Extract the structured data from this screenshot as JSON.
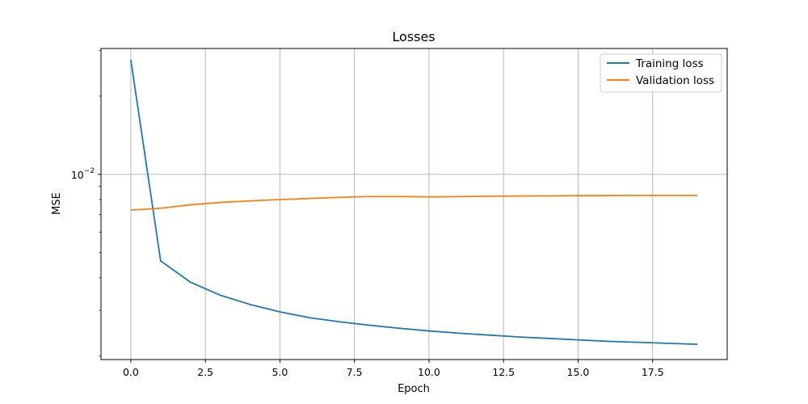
{
  "chart_data": {
    "type": "line",
    "title": "Losses",
    "xlabel": "Epoch",
    "ylabel": "MSE",
    "yscale": "log",
    "xlim": [
      -1.0,
      20.0
    ],
    "ylim": [
      0.00194,
      0.0305
    ],
    "grid": true,
    "legend_position": "top-right",
    "xticks": [
      {
        "value": 0.0,
        "label": "0.0"
      },
      {
        "value": 2.5,
        "label": "2.5"
      },
      {
        "value": 5.0,
        "label": "5.0"
      },
      {
        "value": 7.5,
        "label": "7.5"
      },
      {
        "value": 10.0,
        "label": "10.0"
      },
      {
        "value": 12.5,
        "label": "12.5"
      },
      {
        "value": 15.0,
        "label": "15.0"
      },
      {
        "value": 17.5,
        "label": "17.5"
      }
    ],
    "yticks_major": [
      {
        "value": 0.01,
        "label_base": "10",
        "label_exp": "−2"
      }
    ],
    "yticks_minor": [
      0.002,
      0.003,
      0.004,
      0.005,
      0.006,
      0.007,
      0.008,
      0.009,
      0.02,
      0.03
    ],
    "x": [
      0,
      1,
      2,
      3,
      4,
      5,
      6,
      7,
      8,
      9,
      10,
      11,
      12,
      13,
      14,
      15,
      16,
      17,
      18,
      19
    ],
    "series": [
      {
        "name": "Training loss",
        "color": "#1f77b4",
        "values": [
          0.0276,
          0.00465,
          0.00385,
          0.00343,
          0.00316,
          0.00296,
          0.00281,
          0.00271,
          0.00263,
          0.00256,
          0.0025,
          0.00245,
          0.00241,
          0.00237,
          0.00234,
          0.00231,
          0.00228,
          0.00226,
          0.00224,
          0.00222
        ]
      },
      {
        "name": "Validation loss",
        "color": "#ff7f0e",
        "values": [
          0.00729,
          0.00741,
          0.00764,
          0.0078,
          0.00791,
          0.008,
          0.00808,
          0.00816,
          0.00822,
          0.00822,
          0.00819,
          0.00821,
          0.00824,
          0.00826,
          0.00827,
          0.00828,
          0.00829,
          0.0083,
          0.0083,
          0.0083
        ]
      }
    ]
  }
}
